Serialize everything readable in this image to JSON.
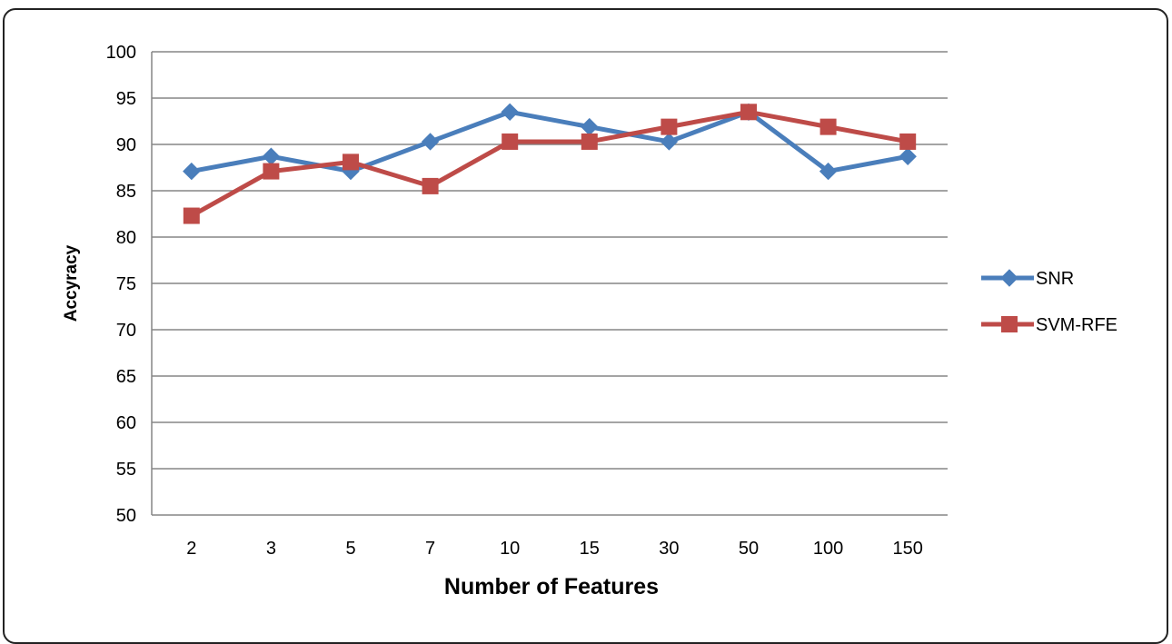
{
  "chart_data": {
    "type": "line",
    "title": "",
    "xlabel": "Number of Features",
    "ylabel": "Accyracy",
    "categories": [
      "2",
      "3",
      "5",
      "7",
      "10",
      "15",
      "30",
      "50",
      "100",
      "150"
    ],
    "yticks": [
      "50",
      "55",
      "60",
      "65",
      "70",
      "75",
      "80",
      "85",
      "90",
      "95",
      "100"
    ],
    "ylim": [
      50,
      100
    ],
    "grid": "horizontal",
    "legend_position": "right",
    "series": [
      {
        "name": "SNR",
        "color": "#4a7ebb",
        "marker": "diamond",
        "values": [
          87.1,
          88.7,
          87.1,
          90.3,
          93.5,
          91.9,
          90.3,
          93.5,
          87.1,
          88.7
        ]
      },
      {
        "name": "SVM-RFE",
        "color": "#be4b48",
        "marker": "square",
        "values": [
          82.3,
          87.1,
          88.1,
          85.5,
          90.3,
          90.3,
          91.9,
          93.5,
          91.9,
          90.3
        ]
      }
    ]
  }
}
